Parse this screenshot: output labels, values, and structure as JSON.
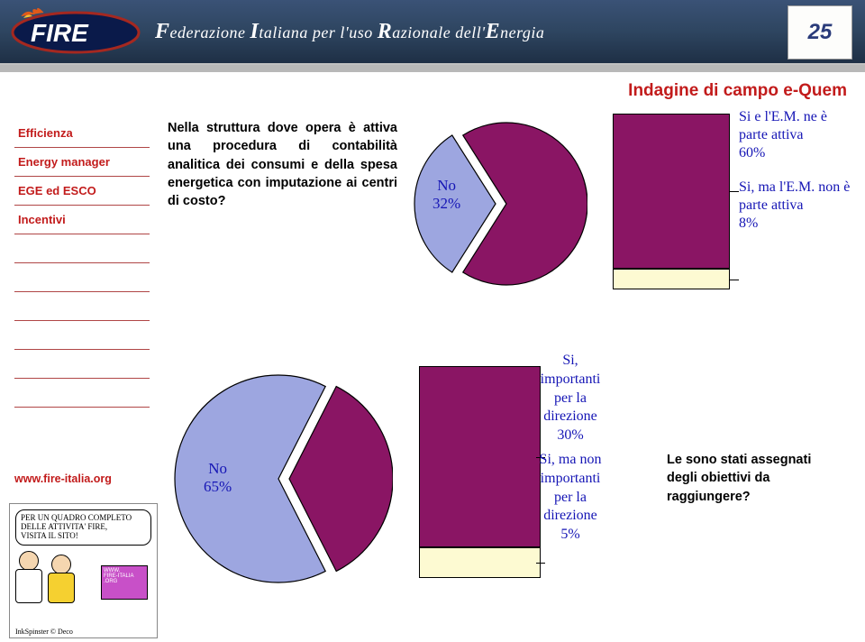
{
  "header": {
    "federation_prefix": "F",
    "federation_text1": "ederazione ",
    "federation_i": "I",
    "federation_text2": "taliana per l'uso ",
    "federation_r": "R",
    "federation_text3": "azionale dell'",
    "federation_e": "E",
    "federation_text4": "nergia",
    "badge_number": "25"
  },
  "page_title": "Indagine di campo e-Quem",
  "sidebar": {
    "items": [
      {
        "label": "Efficienza"
      },
      {
        "label": "Energy manager"
      },
      {
        "label": "EGE ed ESCO"
      },
      {
        "label": "Incentivi"
      },
      {
        "label": ""
      },
      {
        "label": ""
      },
      {
        "label": ""
      },
      {
        "label": ""
      },
      {
        "label": ""
      },
      {
        "label": ""
      }
    ]
  },
  "question1": "Nella struttura dove opera è attiva una procedura di contabilità analitica dei consumi e della spesa energetica con imputazione ai centri di costo?",
  "question2": "Le sono stati assegnati degli obiettivi da raggiungere?",
  "url": "www.fire-italia.org",
  "pie1": {
    "type": "pie",
    "no_pct": 32,
    "yes_pct": 68,
    "no_label": "No",
    "no_value_label": "32%",
    "colors": {
      "no": "#9da6e0",
      "yes": "#8a1564"
    },
    "stroke": "#000000",
    "diameter": 180
  },
  "bar1": {
    "type": "stacked-bar",
    "segments": [
      {
        "label": "Si e l'E.M. ne è parte attiva",
        "pct": 60,
        "value_label": "60%",
        "color": "#8a1564"
      },
      {
        "label": "Si, ma l'E.M. non è parte attiva",
        "pct": 8,
        "value_label": "8%",
        "color": "#fdfad2"
      }
    ],
    "total_pct": 68,
    "background": "#ffffff",
    "border": "#000000"
  },
  "pie2": {
    "type": "pie",
    "no_pct": 65,
    "yes_pct": 35,
    "no_label": "No",
    "no_value_label": "65%",
    "colors": {
      "no": "#9da6e0",
      "yes": "#8a1564"
    },
    "stroke": "#000000",
    "diameter": 230
  },
  "bar2": {
    "type": "stacked-bar",
    "segments": [
      {
        "label_lines": [
          "Si,",
          "importanti",
          "per la",
          "direzione"
        ],
        "pct": 30,
        "value_label": "30%",
        "color": "#8a1564"
      },
      {
        "label_lines": [
          "Si, ma non",
          "importanti",
          "per la",
          "direzione"
        ],
        "pct": 5,
        "value_label": "5%",
        "color": "#fdfad2"
      }
    ],
    "total_pct": 35,
    "background": "#ffffff",
    "border": "#000000"
  },
  "cartoon": {
    "bubble_line1": "PER UN QUADRO COMPLETO",
    "bubble_line2": "DELLE ATTIVITA' FIRE,",
    "bubble_line3": "VISITA IL SITO!",
    "screen_line1": "WWW.",
    "screen_line2": "FIRE-ITALIA",
    "screen_line3": ".ORG",
    "credit": "InkSpinster © Deco"
  },
  "style": {
    "title_color": "#c21b1b",
    "chart_text_color": "#1515b5",
    "header_bg": "#2e4560",
    "font_question_size": 14.5,
    "font_chart_size": 17
  }
}
